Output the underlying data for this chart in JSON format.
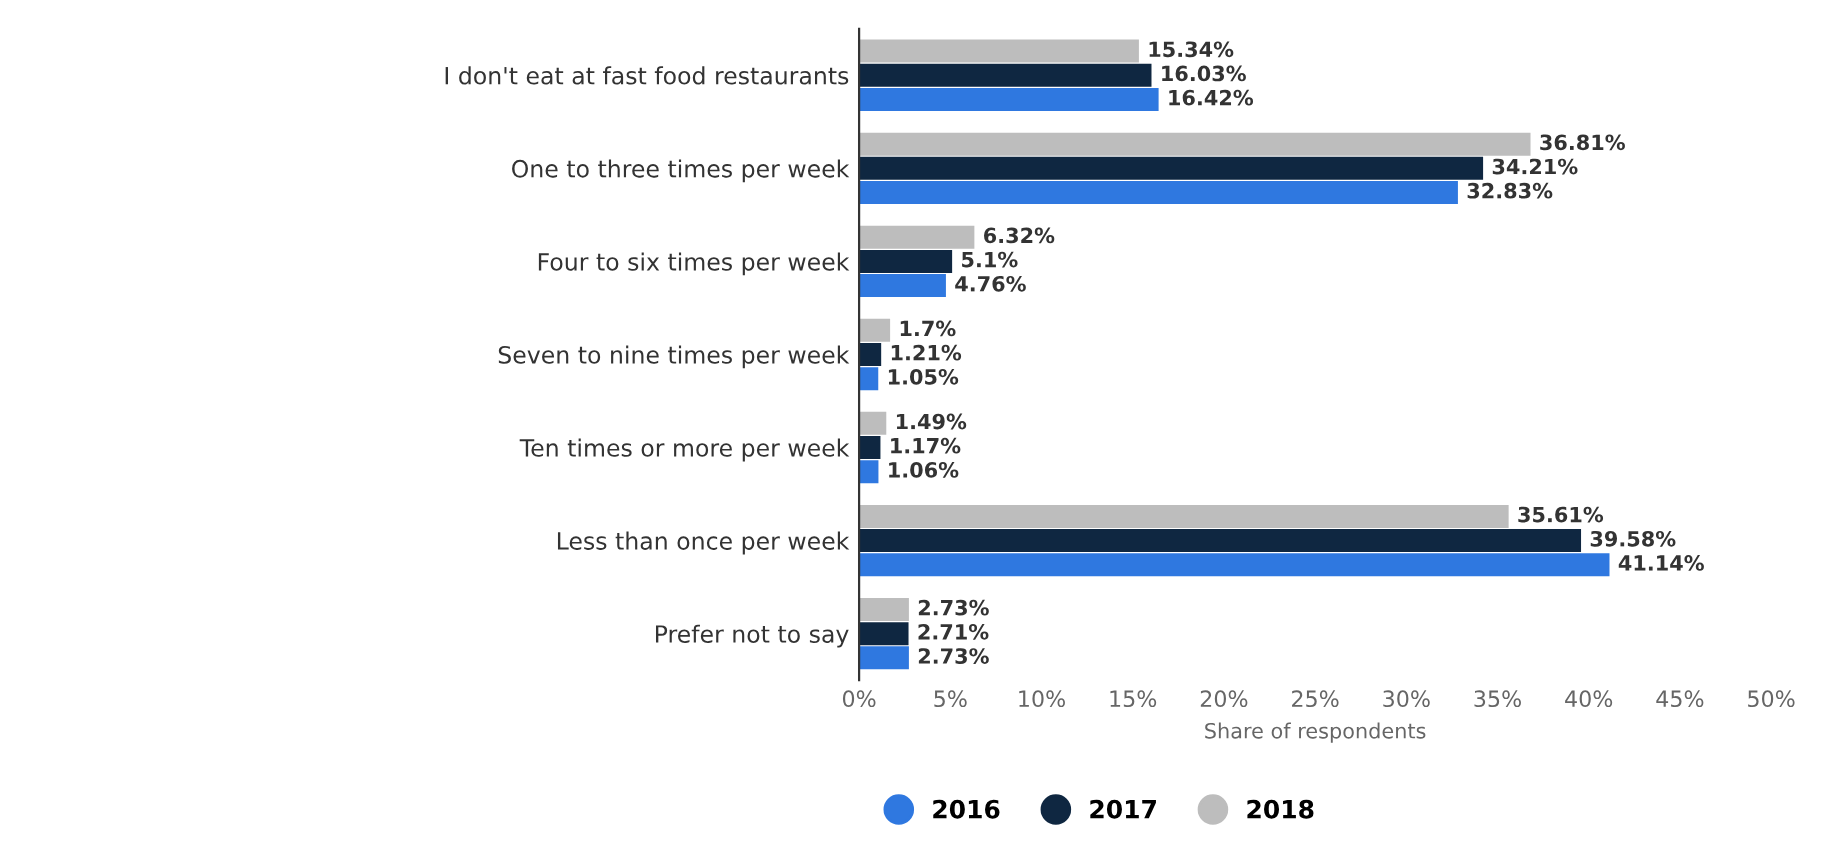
{
  "chart_data": {
    "type": "bar",
    "orientation": "horizontal",
    "categories": [
      "I don't eat at fast food restaurants",
      "One to three times per week",
      "Four to six times per week",
      "Seven to nine times per week",
      "Ten times or more per week",
      "Less than once per week",
      "Prefer not to say"
    ],
    "series": [
      {
        "name": "2016",
        "color": "#2f78e0",
        "values": [
          16.42,
          32.83,
          4.76,
          1.05,
          1.06,
          41.14,
          2.73
        ],
        "value_labels": [
          "16.42%",
          "32.83%",
          "4.76%",
          "1.05%",
          "1.06%",
          "41.14%",
          "2.73%"
        ]
      },
      {
        "name": "2017",
        "color": "#0f2741",
        "values": [
          16.03,
          34.21,
          5.1,
          1.21,
          1.17,
          39.58,
          2.71
        ],
        "value_labels": [
          "16.03%",
          "34.21%",
          "5.1%",
          "1.21%",
          "1.17%",
          "39.58%",
          "2.71%"
        ]
      },
      {
        "name": "2018",
        "color": "#bdbdbd",
        "values": [
          15.34,
          36.81,
          6.32,
          1.7,
          1.49,
          35.61,
          2.73
        ],
        "value_labels": [
          "15.34%",
          "36.81%",
          "6.32%",
          "1.7%",
          "1.49%",
          "35.61%",
          "2.73%"
        ]
      }
    ],
    "xlabel": "Share of respondents",
    "xlim": [
      0,
      50
    ],
    "xticks": [
      {
        "value": 0,
        "label": "0%"
      },
      {
        "value": 5,
        "label": "5%"
      },
      {
        "value": 10,
        "label": "10%"
      },
      {
        "value": 15,
        "label": "15%"
      },
      {
        "value": 20,
        "label": "20%"
      },
      {
        "value": 25,
        "label": "25%"
      },
      {
        "value": 30,
        "label": "30%"
      },
      {
        "value": 35,
        "label": "35%"
      },
      {
        "value": 40,
        "label": "40%"
      },
      {
        "value": 45,
        "label": "45%"
      },
      {
        "value": 50,
        "label": "50%"
      }
    ],
    "legend": "bottom",
    "marker": "circle",
    "grid": false
  }
}
